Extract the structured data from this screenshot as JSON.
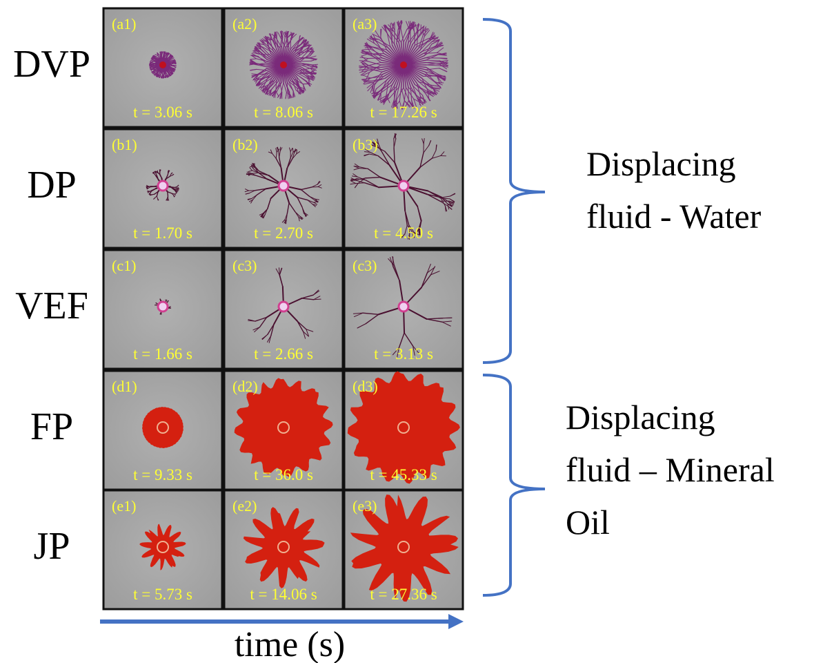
{
  "rows": [
    {
      "label": "DVP",
      "panels": [
        {
          "label": "(a1)",
          "time": "t = 3.06 s"
        },
        {
          "label": "(a2)",
          "time": "t = 8.06 s"
        },
        {
          "label": "(a3)",
          "time": "t = 17.26 s"
        }
      ]
    },
    {
      "label": "DP",
      "panels": [
        {
          "label": "(b1)",
          "time": "t = 1.70 s"
        },
        {
          "label": "(b2)",
          "time": "t = 2.70 s"
        },
        {
          "label": "(b3)",
          "time": "t = 4.50 s"
        }
      ]
    },
    {
      "label": "VEF",
      "panels": [
        {
          "label": "(c1)",
          "time": "t = 1.66 s"
        },
        {
          "label": "(c3)",
          "time": "t = 2.66 s"
        },
        {
          "label": "(c3)",
          "time": "t = 3.13 s"
        }
      ]
    },
    {
      "label": "FP",
      "panels": [
        {
          "label": "(d1)",
          "time": "t = 9.33 s"
        },
        {
          "label": "(d2)",
          "time": "t = 36.0 s"
        },
        {
          "label": "(d3)",
          "time": "t = 45.33 s"
        }
      ]
    },
    {
      "label": "JP",
      "panels": [
        {
          "label": "(e1)",
          "time": "t = 5.73 s"
        },
        {
          "label": "(e2)",
          "time": "t = 14.06 s"
        },
        {
          "label": "(e3)",
          "time": "t = 27.36 s"
        }
      ]
    }
  ],
  "groups": [
    {
      "lines": [
        "Displacing",
        "fluid - Water"
      ]
    },
    {
      "lines": [
        "Displacing",
        "fluid – Mineral",
        "Oil"
      ]
    }
  ],
  "axis_label": "time (s)"
}
